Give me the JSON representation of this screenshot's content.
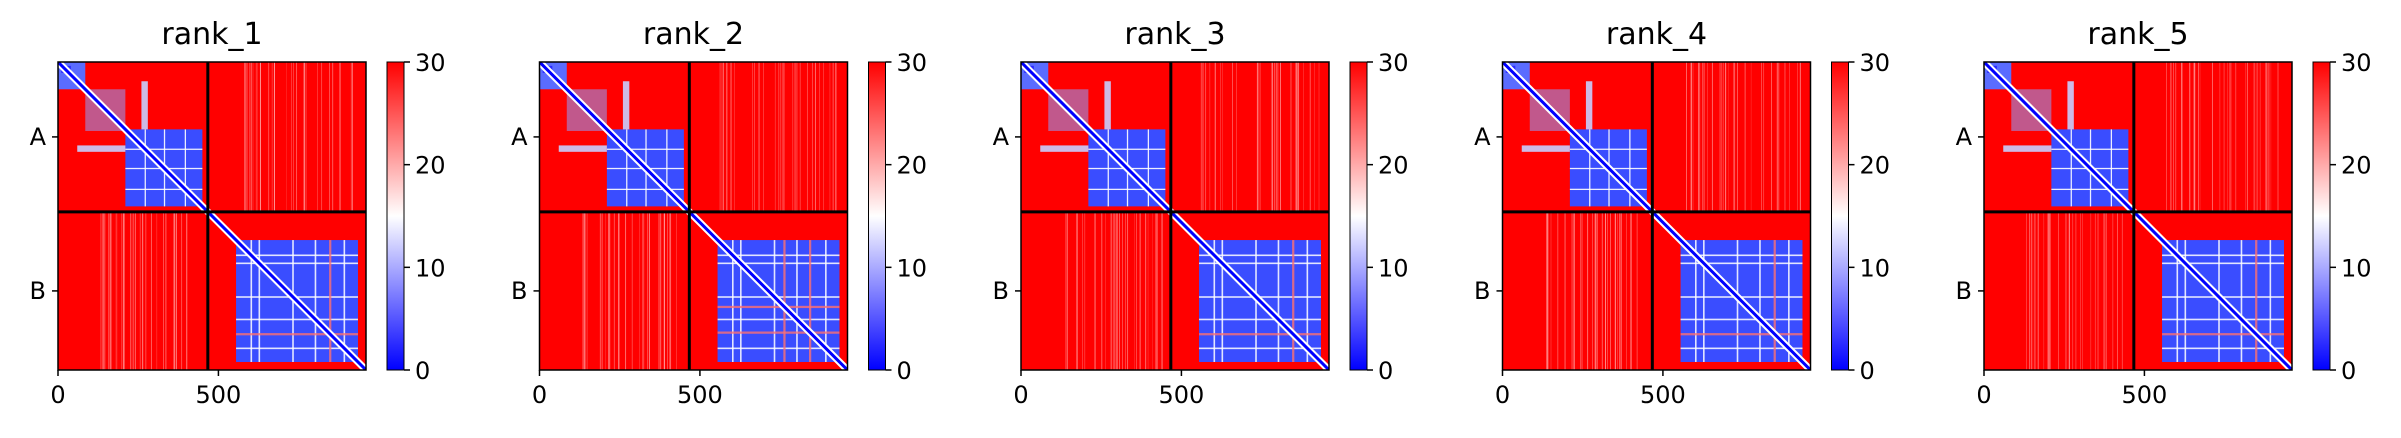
{
  "colors": {
    "low": "#0000ff",
    "mid": "#ffffff",
    "high": "#ff0000",
    "frame": "#000000"
  },
  "chart_data": [
    {
      "type": "heatmap",
      "title": "rank_1",
      "chains": [
        {
          "label": "A",
          "start": 0,
          "end": 467
        },
        {
          "label": "B",
          "start": 467,
          "end": 960
        }
      ],
      "x_ticks": [
        0,
        500
      ],
      "colorbar": {
        "min": 0,
        "max": 30,
        "ticks": [
          0,
          10,
          20,
          30
        ]
      },
      "cmap": "bwr",
      "xlim": [
        0,
        960
      ],
      "ylim": [
        960,
        0
      ]
    },
    {
      "type": "heatmap",
      "title": "rank_2",
      "chains": [
        {
          "label": "A",
          "start": 0,
          "end": 467
        },
        {
          "label": "B",
          "start": 467,
          "end": 960
        }
      ],
      "x_ticks": [
        0,
        500
      ],
      "colorbar": {
        "min": 0,
        "max": 30,
        "ticks": [
          0,
          10,
          20,
          30
        ]
      },
      "cmap": "bwr",
      "xlim": [
        0,
        960
      ],
      "ylim": [
        960,
        0
      ]
    },
    {
      "type": "heatmap",
      "title": "rank_3",
      "chains": [
        {
          "label": "A",
          "start": 0,
          "end": 467
        },
        {
          "label": "B",
          "start": 467,
          "end": 960
        }
      ],
      "x_ticks": [
        0,
        500
      ],
      "colorbar": {
        "min": 0,
        "max": 30,
        "ticks": [
          0,
          10,
          20,
          30
        ]
      },
      "cmap": "bwr",
      "xlim": [
        0,
        960
      ],
      "ylim": [
        960,
        0
      ]
    },
    {
      "type": "heatmap",
      "title": "rank_4",
      "chains": [
        {
          "label": "A",
          "start": 0,
          "end": 467
        },
        {
          "label": "B",
          "start": 467,
          "end": 960
        }
      ],
      "x_ticks": [
        0,
        500
      ],
      "colorbar": {
        "min": 0,
        "max": 30,
        "ticks": [
          0,
          10,
          20,
          30
        ]
      },
      "cmap": "bwr",
      "xlim": [
        0,
        960
      ],
      "ylim": [
        960,
        0
      ]
    },
    {
      "type": "heatmap",
      "title": "rank_5",
      "chains": [
        {
          "label": "A",
          "start": 0,
          "end": 467
        },
        {
          "label": "B",
          "start": 467,
          "end": 960
        }
      ],
      "x_ticks": [
        0,
        500
      ],
      "colorbar": {
        "min": 0,
        "max": 30,
        "ticks": [
          0,
          10,
          20,
          30
        ]
      },
      "cmap": "bwr",
      "xlim": [
        0,
        960
      ],
      "ylim": [
        960,
        0
      ]
    }
  ]
}
